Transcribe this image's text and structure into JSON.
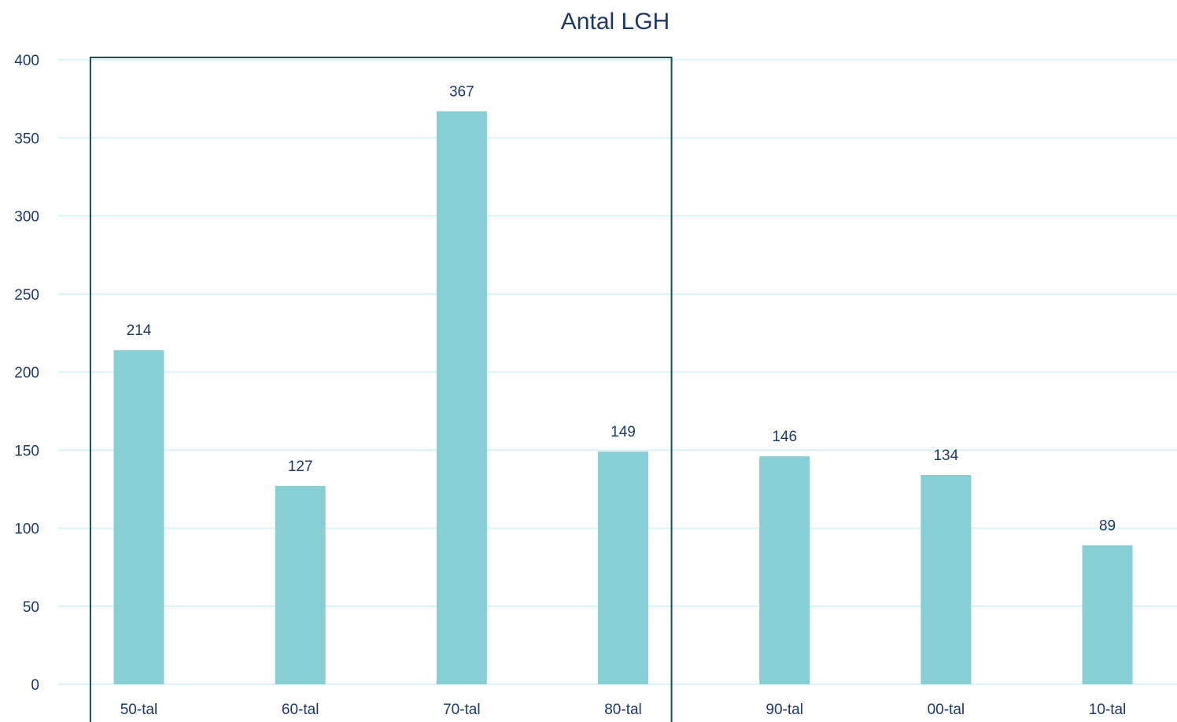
{
  "chart_data": {
    "type": "bar",
    "title": "Antal LGH",
    "xlabel": "",
    "ylabel": "",
    "categories": [
      "50-tal",
      "60-tal",
      "70-tal",
      "80-tal",
      "90-tal",
      "00-tal",
      "10-tal"
    ],
    "values": [
      214,
      127,
      367,
      149,
      146,
      134,
      89
    ],
    "data_labels": [
      "214",
      "127",
      "367",
      "149",
      "146",
      "134",
      "89"
    ],
    "ylim": [
      0,
      400
    ],
    "yticks": [
      0,
      50,
      100,
      150,
      200,
      250,
      300,
      350,
      400
    ],
    "ytick_labels": [
      "0",
      "50",
      "100",
      "150",
      "200",
      "250",
      "300",
      "350",
      "400"
    ],
    "grid": true,
    "legend": "none",
    "highlight_categories": [
      "50-tal",
      "60-tal",
      "70-tal",
      "80-tal"
    ],
    "colors": {
      "bar": "#87cfd4",
      "grid": "#cdf3f6",
      "text": "#1f3864",
      "highlight_border": "#1b4d55"
    }
  }
}
